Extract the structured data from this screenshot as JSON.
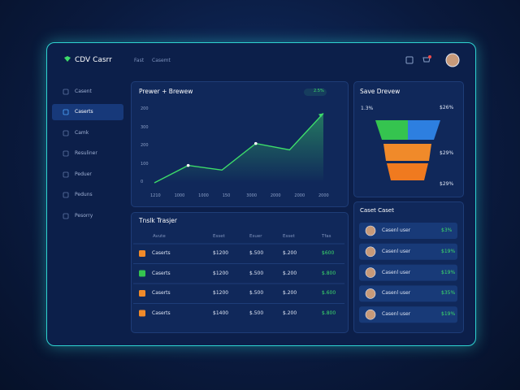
{
  "header": {
    "logo": "CDV Casrr",
    "nav": [
      "Fast",
      "Casemt"
    ]
  },
  "sidebar": [
    "Casent",
    "Caserts",
    "Camk",
    "Resuliner",
    "Peduer",
    "Peduns",
    "Pesorry"
  ],
  "line_chart": {
    "title": "Prewer + Brewew",
    "badge": "2.5%",
    "y_labels": [
      "200",
      "300",
      "200",
      "100",
      "0"
    ],
    "x_labels": [
      "1210",
      "1000",
      "1000",
      "150",
      "3000",
      "2000",
      "2000",
      "2000"
    ],
    "ylim": [
      0,
      400
    ],
    "values": [
      0,
      95,
      70,
      215,
      180,
      380
    ],
    "color": "#3ddc6a"
  },
  "funnel": {
    "title": "Save Drevew",
    "labels": [
      "1.3%",
      "$26%",
      "$29%",
      "$29%"
    ]
  },
  "table": {
    "title": "Tnslk Trasjer",
    "headers": [
      "Avute",
      "Esset",
      "Esuer",
      "Esset",
      "Tfas"
    ],
    "rows": [
      [
        "Caserts",
        "$1200",
        "$.500",
        "$.200",
        "$600"
      ],
      [
        "Caserts",
        "$1200",
        "$.500",
        "$.200",
        "$.800"
      ],
      [
        "Caserts",
        "$1200",
        "$.500",
        "$.200",
        "$.600"
      ],
      [
        "Caserts",
        "$1400",
        "$.500",
        "$.200",
        "$.800"
      ]
    ]
  },
  "list": {
    "title": "Caset Caset",
    "items": [
      [
        "Casenl user",
        "$3%"
      ],
      [
        "Casenl user",
        "$19%"
      ],
      [
        "Casenl user",
        "$19%"
      ],
      [
        "Casenl user",
        "$35%"
      ],
      [
        "Casenl user",
        "$19%"
      ]
    ]
  }
}
